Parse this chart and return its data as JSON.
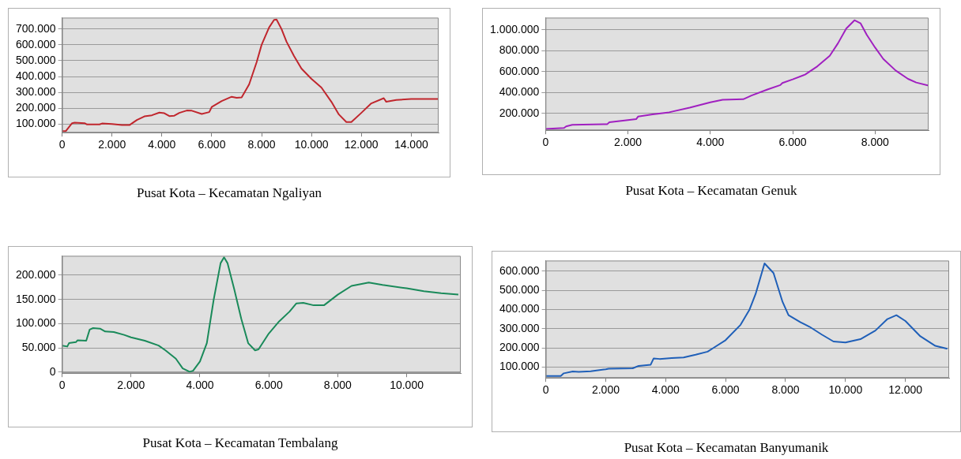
{
  "chart_data": [
    {
      "type": "line",
      "title": "Pusat Kota – Kecamatan Ngaliyan",
      "color": "#c0262d",
      "grid": "y",
      "legend": false,
      "x": [
        0,
        150,
        400,
        500,
        900,
        1000,
        1500,
        1600,
        2000,
        2400,
        2700,
        3000,
        3300,
        3600,
        3900,
        4100,
        4300,
        4500,
        4700,
        5000,
        5200,
        5600,
        5900,
        6000,
        6400,
        6800,
        7000,
        7200,
        7500,
        7800,
        8000,
        8300,
        8500,
        8600,
        8800,
        9000,
        9300,
        9600,
        10000,
        10400,
        10800,
        11100,
        11400,
        11600,
        12000,
        12400,
        12900,
        13000,
        13400,
        14000,
        15100
      ],
      "values": [
        55000,
        55000,
        105000,
        108000,
        105000,
        97000,
        97000,
        103000,
        99000,
        93000,
        93000,
        125000,
        148000,
        155000,
        172000,
        168000,
        150000,
        152000,
        170000,
        185000,
        184000,
        163000,
        175000,
        207000,
        245000,
        272000,
        265000,
        268000,
        350000,
        490000,
        600000,
        710000,
        758000,
        760000,
        700000,
        620000,
        530000,
        450000,
        385000,
        330000,
        240000,
        160000,
        112000,
        112000,
        170000,
        230000,
        263000,
        240000,
        252000,
        258000,
        258000
      ],
      "xlim": [
        0,
        15100
      ],
      "ylim": [
        45000,
        772000
      ],
      "xticks": [
        {
          "value": 0,
          "label": "0"
        },
        {
          "value": 2000,
          "label": "2.000"
        },
        {
          "value": 4000,
          "label": "4.000"
        },
        {
          "value": 6000,
          "label": "6.000"
        },
        {
          "value": 8000,
          "label": "8.000"
        },
        {
          "value": 10000,
          "label": "10.000"
        },
        {
          "value": 12000,
          "label": "12.000"
        },
        {
          "value": 14000,
          "label": "14.000"
        }
      ],
      "yticks": [
        {
          "value": 100000,
          "label": "100.000"
        },
        {
          "value": 200000,
          "label": "200.000"
        },
        {
          "value": 300000,
          "label": "300.000"
        },
        {
          "value": 400000,
          "label": "400.000"
        },
        {
          "value": 500000,
          "label": "500.000"
        },
        {
          "value": 600000,
          "label": "600.000"
        },
        {
          "value": 700000,
          "label": "700.000"
        }
      ]
    },
    {
      "type": "line",
      "title": "Pusat Kota – Kecamatan Genuk",
      "color": "#a020c0",
      "grid": "y",
      "legend": false,
      "x": [
        0,
        450,
        500,
        650,
        1500,
        1550,
        2000,
        2200,
        2250,
        2600,
        3000,
        3500,
        4000,
        4300,
        4800,
        5000,
        5400,
        5700,
        5750,
        6000,
        6300,
        6600,
        6900,
        7100,
        7300,
        7500,
        7650,
        7800,
        8000,
        8200,
        8500,
        8800,
        9000,
        9300
      ],
      "values": [
        50000,
        60000,
        75000,
        90000,
        97000,
        115000,
        135000,
        145000,
        170000,
        190000,
        210000,
        255000,
        305000,
        330000,
        335000,
        370000,
        430000,
        470000,
        490000,
        525000,
        570000,
        650000,
        750000,
        870000,
        1010000,
        1090000,
        1060000,
        950000,
        830000,
        720000,
        610000,
        530000,
        495000,
        465000
      ],
      "xlim": [
        0,
        9300
      ],
      "ylim": [
        38000,
        1115000
      ],
      "xticks": [
        {
          "value": 0,
          "label": "0"
        },
        {
          "value": 2000,
          "label": "2.000"
        },
        {
          "value": 4000,
          "label": "4.000"
        },
        {
          "value": 6000,
          "label": "6.000"
        },
        {
          "value": 8000,
          "label": "8.000"
        }
      ],
      "yticks": [
        {
          "value": 200000,
          "label": "200.000"
        },
        {
          "value": 400000,
          "label": "400.000"
        },
        {
          "value": 600000,
          "label": "600.000"
        },
        {
          "value": 800000,
          "label": "800.000"
        },
        {
          "value": 1000000,
          "label": "1.000.000"
        }
      ]
    },
    {
      "type": "line",
      "title": "Pusat Kota – Kecamatan Tembalang",
      "color": "#1a8a5a",
      "grid": "y",
      "legend": false,
      "x": [
        0,
        150,
        200,
        400,
        450,
        700,
        800,
        900,
        1100,
        1250,
        1500,
        1800,
        2000,
        2400,
        2800,
        3000,
        3300,
        3500,
        3700,
        3800,
        4000,
        4200,
        4400,
        4600,
        4700,
        4800,
        5000,
        5200,
        5400,
        5600,
        5700,
        6000,
        6300,
        6600,
        6800,
        7000,
        7300,
        7600,
        8000,
        8400,
        8900,
        9300,
        10000,
        10500,
        11000,
        11500
      ],
      "values": [
        55000,
        53000,
        60000,
        62000,
        66000,
        65000,
        88000,
        91000,
        90000,
        84000,
        83000,
        77000,
        72000,
        65000,
        55000,
        45000,
        28000,
        8000,
        1000,
        3000,
        22000,
        60000,
        150000,
        225000,
        237000,
        225000,
        170000,
        110000,
        60000,
        45000,
        47000,
        80000,
        105000,
        125000,
        142000,
        143000,
        138000,
        138000,
        160000,
        178000,
        185000,
        180000,
        173000,
        167000,
        163000,
        160000
      ],
      "xlim": [
        0,
        11570
      ],
      "ylim": [
        -2000,
        240000
      ],
      "xticks": [
        {
          "value": 0,
          "label": "0"
        },
        {
          "value": 2000,
          "label": "2.000"
        },
        {
          "value": 4000,
          "label": "4.000"
        },
        {
          "value": 6000,
          "label": "6.000"
        },
        {
          "value": 8000,
          "label": "8.000"
        },
        {
          "value": 10000,
          "label": "10.000"
        }
      ],
      "yticks": [
        {
          "value": 0,
          "label": "0"
        },
        {
          "value": 50000,
          "label": "50.000"
        },
        {
          "value": 100000,
          "label": "100.000"
        },
        {
          "value": 150000,
          "label": "150.000"
        },
        {
          "value": 200000,
          "label": "200.000"
        }
      ]
    },
    {
      "type": "line",
      "title": "Pusat Kota – Kecamatan Banyumanik",
      "color": "#1f5fb8",
      "grid": "y",
      "legend": false,
      "x": [
        0,
        500,
        600,
        900,
        1100,
        1500,
        2000,
        2100,
        2900,
        3100,
        3500,
        3600,
        3800,
        4200,
        4600,
        5000,
        5400,
        5600,
        6000,
        6500,
        6800,
        7000,
        7300,
        7600,
        7900,
        8100,
        8500,
        8800,
        9200,
        9600,
        10000,
        10500,
        11000,
        11400,
        11700,
        12000,
        12500,
        13000,
        13400
      ],
      "values": [
        53000,
        53000,
        67000,
        77000,
        75000,
        78000,
        88000,
        91000,
        93000,
        106000,
        112000,
        145000,
        142000,
        147000,
        150000,
        164000,
        180000,
        200000,
        240000,
        320000,
        400000,
        480000,
        640000,
        590000,
        440000,
        370000,
        333000,
        310000,
        270000,
        233000,
        228000,
        245000,
        290000,
        350000,
        370000,
        340000,
        260000,
        210000,
        195000
      ],
      "xlim": [
        0,
        13460
      ],
      "ylim": [
        43000,
        655000
      ],
      "xticks": [
        {
          "value": 0,
          "label": "0"
        },
        {
          "value": 2000,
          "label": "2.000"
        },
        {
          "value": 4000,
          "label": "4.000"
        },
        {
          "value": 6000,
          "label": "6.000"
        },
        {
          "value": 8000,
          "label": "8.000"
        },
        {
          "value": 10000,
          "label": "10.000"
        },
        {
          "value": 12000,
          "label": "12.000"
        }
      ],
      "yticks": [
        {
          "value": 100000,
          "label": "100.000"
        },
        {
          "value": 200000,
          "label": "200.000"
        },
        {
          "value": 300000,
          "label": "300.000"
        },
        {
          "value": 400000,
          "label": "400.000"
        },
        {
          "value": 500000,
          "label": "500.000"
        },
        {
          "value": 600000,
          "label": "600.000"
        }
      ]
    }
  ]
}
